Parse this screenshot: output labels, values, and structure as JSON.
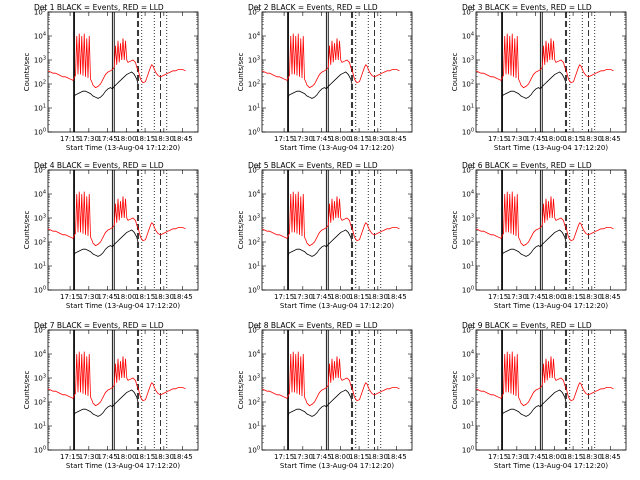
{
  "chart_data": {
    "type": "line",
    "panel_grid": "3x3",
    "ylabel": "Counts/sec",
    "xlabel": "Start Time (13-Aug-04 17:12:20)",
    "x_tick_labels": [
      "17:15",
      "17:30",
      "17:45",
      "18:00",
      "18:15",
      "18:30",
      "18:45"
    ],
    "x_tick_minutes": [
      17.67,
      32.67,
      47.67,
      62.67,
      77.67,
      92.67,
      107.67
    ],
    "x_range_minutes": [
      0,
      120
    ],
    "y_tick_labels": [
      "10^0",
      "10^1",
      "10^2",
      "10^3",
      "10^4",
      "10^5"
    ],
    "y_scale": "log",
    "ylim_log10": [
      0,
      5
    ],
    "series_colors": {
      "events": "#000000",
      "lld": "#ff0000"
    },
    "vertical_markers": [
      {
        "minute": 20.5,
        "style": "solid"
      },
      {
        "minute": 21.2,
        "style": "solid"
      },
      {
        "minute": 51.5,
        "style": "solid"
      },
      {
        "minute": 53.0,
        "style": "solid"
      },
      {
        "minute": 71.5,
        "style": "dashed"
      },
      {
        "minute": 72.5,
        "style": "dashed"
      },
      {
        "minute": 75.0,
        "style": "dotted"
      },
      {
        "minute": 85.0,
        "style": "dotted"
      },
      {
        "minute": 90.0,
        "style": "dashed"
      },
      {
        "minute": 95.0,
        "style": "dotted"
      }
    ],
    "panels": [
      {
        "title": "Det 1 BLACK = Events, RED = LLD"
      },
      {
        "title": "Det 2 BLACK = Events, RED = LLD"
      },
      {
        "title": "Det 3 BLACK = Events, RED = LLD"
      },
      {
        "title": "Det 4 BLACK = Events, RED = LLD"
      },
      {
        "title": "Det 5 BLACK = Events, RED = LLD"
      },
      {
        "title": "Det 6 BLACK = Events, RED = LLD"
      },
      {
        "title": "Det 7 BLACK = Events, RED = LLD"
      },
      {
        "title": "Det 8 BLACK = Events, RED = LLD"
      },
      {
        "title": "Det 9 BLACK = Events, RED = LLD"
      }
    ],
    "events_series": [
      [
        0,
        null
      ],
      [
        20,
        null
      ],
      [
        20.5,
        1.4
      ],
      [
        21.2,
        1.5
      ],
      [
        22,
        1.55
      ],
      [
        24,
        1.6
      ],
      [
        26,
        1.65
      ],
      [
        28,
        1.7
      ],
      [
        30,
        1.7
      ],
      [
        32,
        1.65
      ],
      [
        34,
        1.6
      ],
      [
        36,
        1.5
      ],
      [
        38,
        1.45
      ],
      [
        40,
        1.4
      ],
      [
        42,
        1.45
      ],
      [
        44,
        1.55
      ],
      [
        46,
        1.7
      ],
      [
        48,
        1.8
      ],
      [
        50,
        1.85
      ],
      [
        51.5,
        1.8
      ],
      [
        53,
        1.9
      ],
      [
        55,
        2.0
      ],
      [
        57,
        2.1
      ],
      [
        59,
        2.2
      ],
      [
        61,
        2.3
      ],
      [
        63,
        2.4
      ],
      [
        65,
        2.45
      ],
      [
        67,
        2.5
      ],
      [
        69,
        2.4
      ],
      [
        71,
        2.2
      ],
      [
        72,
        2.0
      ],
      [
        73,
        null
      ]
    ],
    "lld_series": [
      [
        0,
        2.55
      ],
      [
        2,
        2.5
      ],
      [
        4,
        2.45
      ],
      [
        6,
        2.45
      ],
      [
        8,
        2.4
      ],
      [
        10,
        2.35
      ],
      [
        12,
        2.3
      ],
      [
        14,
        2.3
      ],
      [
        16,
        2.25
      ],
      [
        18,
        2.2
      ],
      [
        20,
        2.15
      ],
      [
        20.5,
        2.2
      ],
      [
        21.2,
        2.3
      ],
      [
        22,
        2.35
      ],
      [
        23,
        4.0
      ],
      [
        24,
        2.4
      ],
      [
        25,
        4.1
      ],
      [
        26,
        2.4
      ],
      [
        27,
        4.0
      ],
      [
        28,
        2.35
      ],
      [
        29,
        4.1
      ],
      [
        30,
        2.3
      ],
      [
        31,
        3.9
      ],
      [
        32,
        2.25
      ],
      [
        33,
        4.0
      ],
      [
        34,
        2.2
      ],
      [
        35,
        2.1
      ],
      [
        36,
        1.95
      ],
      [
        38,
        1.85
      ],
      [
        40,
        1.9
      ],
      [
        42,
        2.0
      ],
      [
        44,
        2.2
      ],
      [
        46,
        2.4
      ],
      [
        48,
        2.5
      ],
      [
        50,
        2.55
      ],
      [
        51.5,
        2.6
      ],
      [
        53,
        2.7
      ],
      [
        54,
        3.6
      ],
      [
        55,
        2.8
      ],
      [
        56,
        3.8
      ],
      [
        57,
        2.9
      ],
      [
        58,
        3.7
      ],
      [
        59,
        3.0
      ],
      [
        60,
        3.9
      ],
      [
        61,
        3.0
      ],
      [
        62,
        3.8
      ],
      [
        63,
        3.0
      ],
      [
        64,
        2.9
      ],
      [
        66,
        2.95
      ],
      [
        68,
        3.0
      ],
      [
        70,
        2.9
      ],
      [
        71,
        2.7
      ],
      [
        72,
        2.6
      ],
      [
        73,
        2.4
      ],
      [
        74,
        2.2
      ],
      [
        76,
        2.05
      ],
      [
        78,
        2.1
      ],
      [
        80,
        2.4
      ],
      [
        82,
        2.7
      ],
      [
        83,
        2.8
      ],
      [
        84,
        2.75
      ],
      [
        86,
        2.5
      ],
      [
        88,
        2.35
      ],
      [
        90,
        2.3
      ],
      [
        92,
        2.35
      ],
      [
        94,
        2.4
      ],
      [
        96,
        2.45
      ],
      [
        98,
        2.5
      ],
      [
        100,
        2.55
      ],
      [
        102,
        2.55
      ],
      [
        104,
        2.6
      ],
      [
        106,
        2.6
      ],
      [
        108,
        2.6
      ],
      [
        110,
        2.55
      ]
    ]
  }
}
